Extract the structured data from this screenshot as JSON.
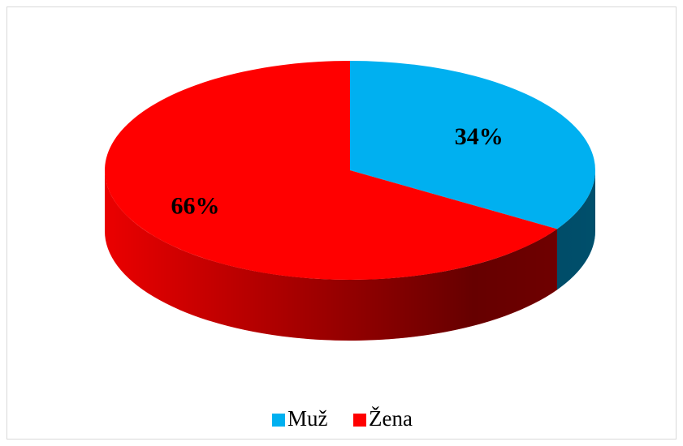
{
  "chart_data": {
    "type": "pie",
    "categories": [
      "Muž",
      "Žena"
    ],
    "values": [
      34,
      66
    ],
    "value_labels": [
      "34%",
      "66%"
    ],
    "colors": [
      "#00b0f0",
      "#ff0000"
    ],
    "legend": "bottom"
  }
}
